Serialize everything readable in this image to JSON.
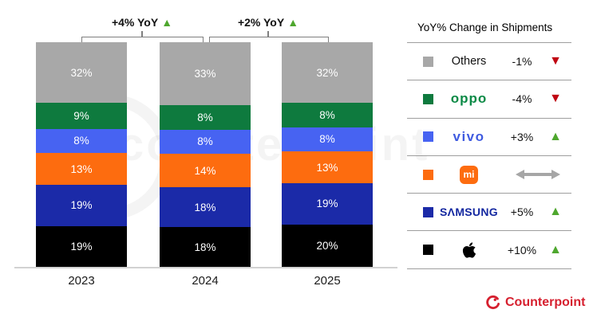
{
  "watermark": {
    "text": "counterpoint"
  },
  "chart_data": {
    "type": "bar",
    "stacked": true,
    "unit": "%",
    "title": "",
    "xlabel": "",
    "ylabel": "",
    "ylim": [
      0,
      100
    ],
    "grid": false,
    "legend_position": "right-panel",
    "categories": [
      "2023",
      "2024",
      "2025"
    ],
    "series": [
      {
        "name": "Others",
        "color": "#a8a8a8",
        "values": [
          32,
          33,
          32
        ]
      },
      {
        "name": "OPPO",
        "color": "#0e7a3e",
        "values": [
          9,
          8,
          8
        ]
      },
      {
        "name": "vivo",
        "color": "#4763f2",
        "values": [
          8,
          8,
          8
        ]
      },
      {
        "name": "Mi",
        "color": "#fd6c0f",
        "values": [
          13,
          14,
          13
        ]
      },
      {
        "name": "Samsung",
        "color": "#1b2aa8",
        "values": [
          19,
          18,
          19
        ]
      },
      {
        "name": "Apple",
        "color": "#000000",
        "values": [
          19,
          18,
          20
        ]
      }
    ],
    "annotations": [
      {
        "label": "+4% YoY",
        "direction": "up",
        "from": "2023",
        "to": "2024"
      },
      {
        "label": "+2% YoY",
        "direction": "up",
        "from": "2024",
        "to": "2025"
      }
    ]
  },
  "legend": {
    "title": "YoY% Change in Shipments",
    "rows": [
      {
        "brand": "Others",
        "logo_text": "Others",
        "change": "-1%",
        "direction": "down"
      },
      {
        "brand": "OPPO",
        "logo_text": "oppo",
        "change": "-4%",
        "direction": "down"
      },
      {
        "brand": "vivo",
        "logo_text": "vivo",
        "change": "+3%",
        "direction": "up"
      },
      {
        "brand": "Mi",
        "logo_text": "mi",
        "change": "",
        "direction": "flat"
      },
      {
        "brand": "Samsung",
        "logo_text": "SΛMSUNG",
        "change": "+5%",
        "direction": "up"
      },
      {
        "brand": "Apple",
        "logo_text": "",
        "change": "+10%",
        "direction": "up"
      }
    ]
  },
  "colors": {
    "up_triangle": "#4ea72e",
    "down_triangle": "#c00512",
    "flat_arrow": "#a6a6a6",
    "bracket_line": "#7f7f7f",
    "axis_line": "#d2d2d2",
    "counterpoint_red": "#d6202f"
  },
  "footer": {
    "brand": "Counterpoint"
  }
}
